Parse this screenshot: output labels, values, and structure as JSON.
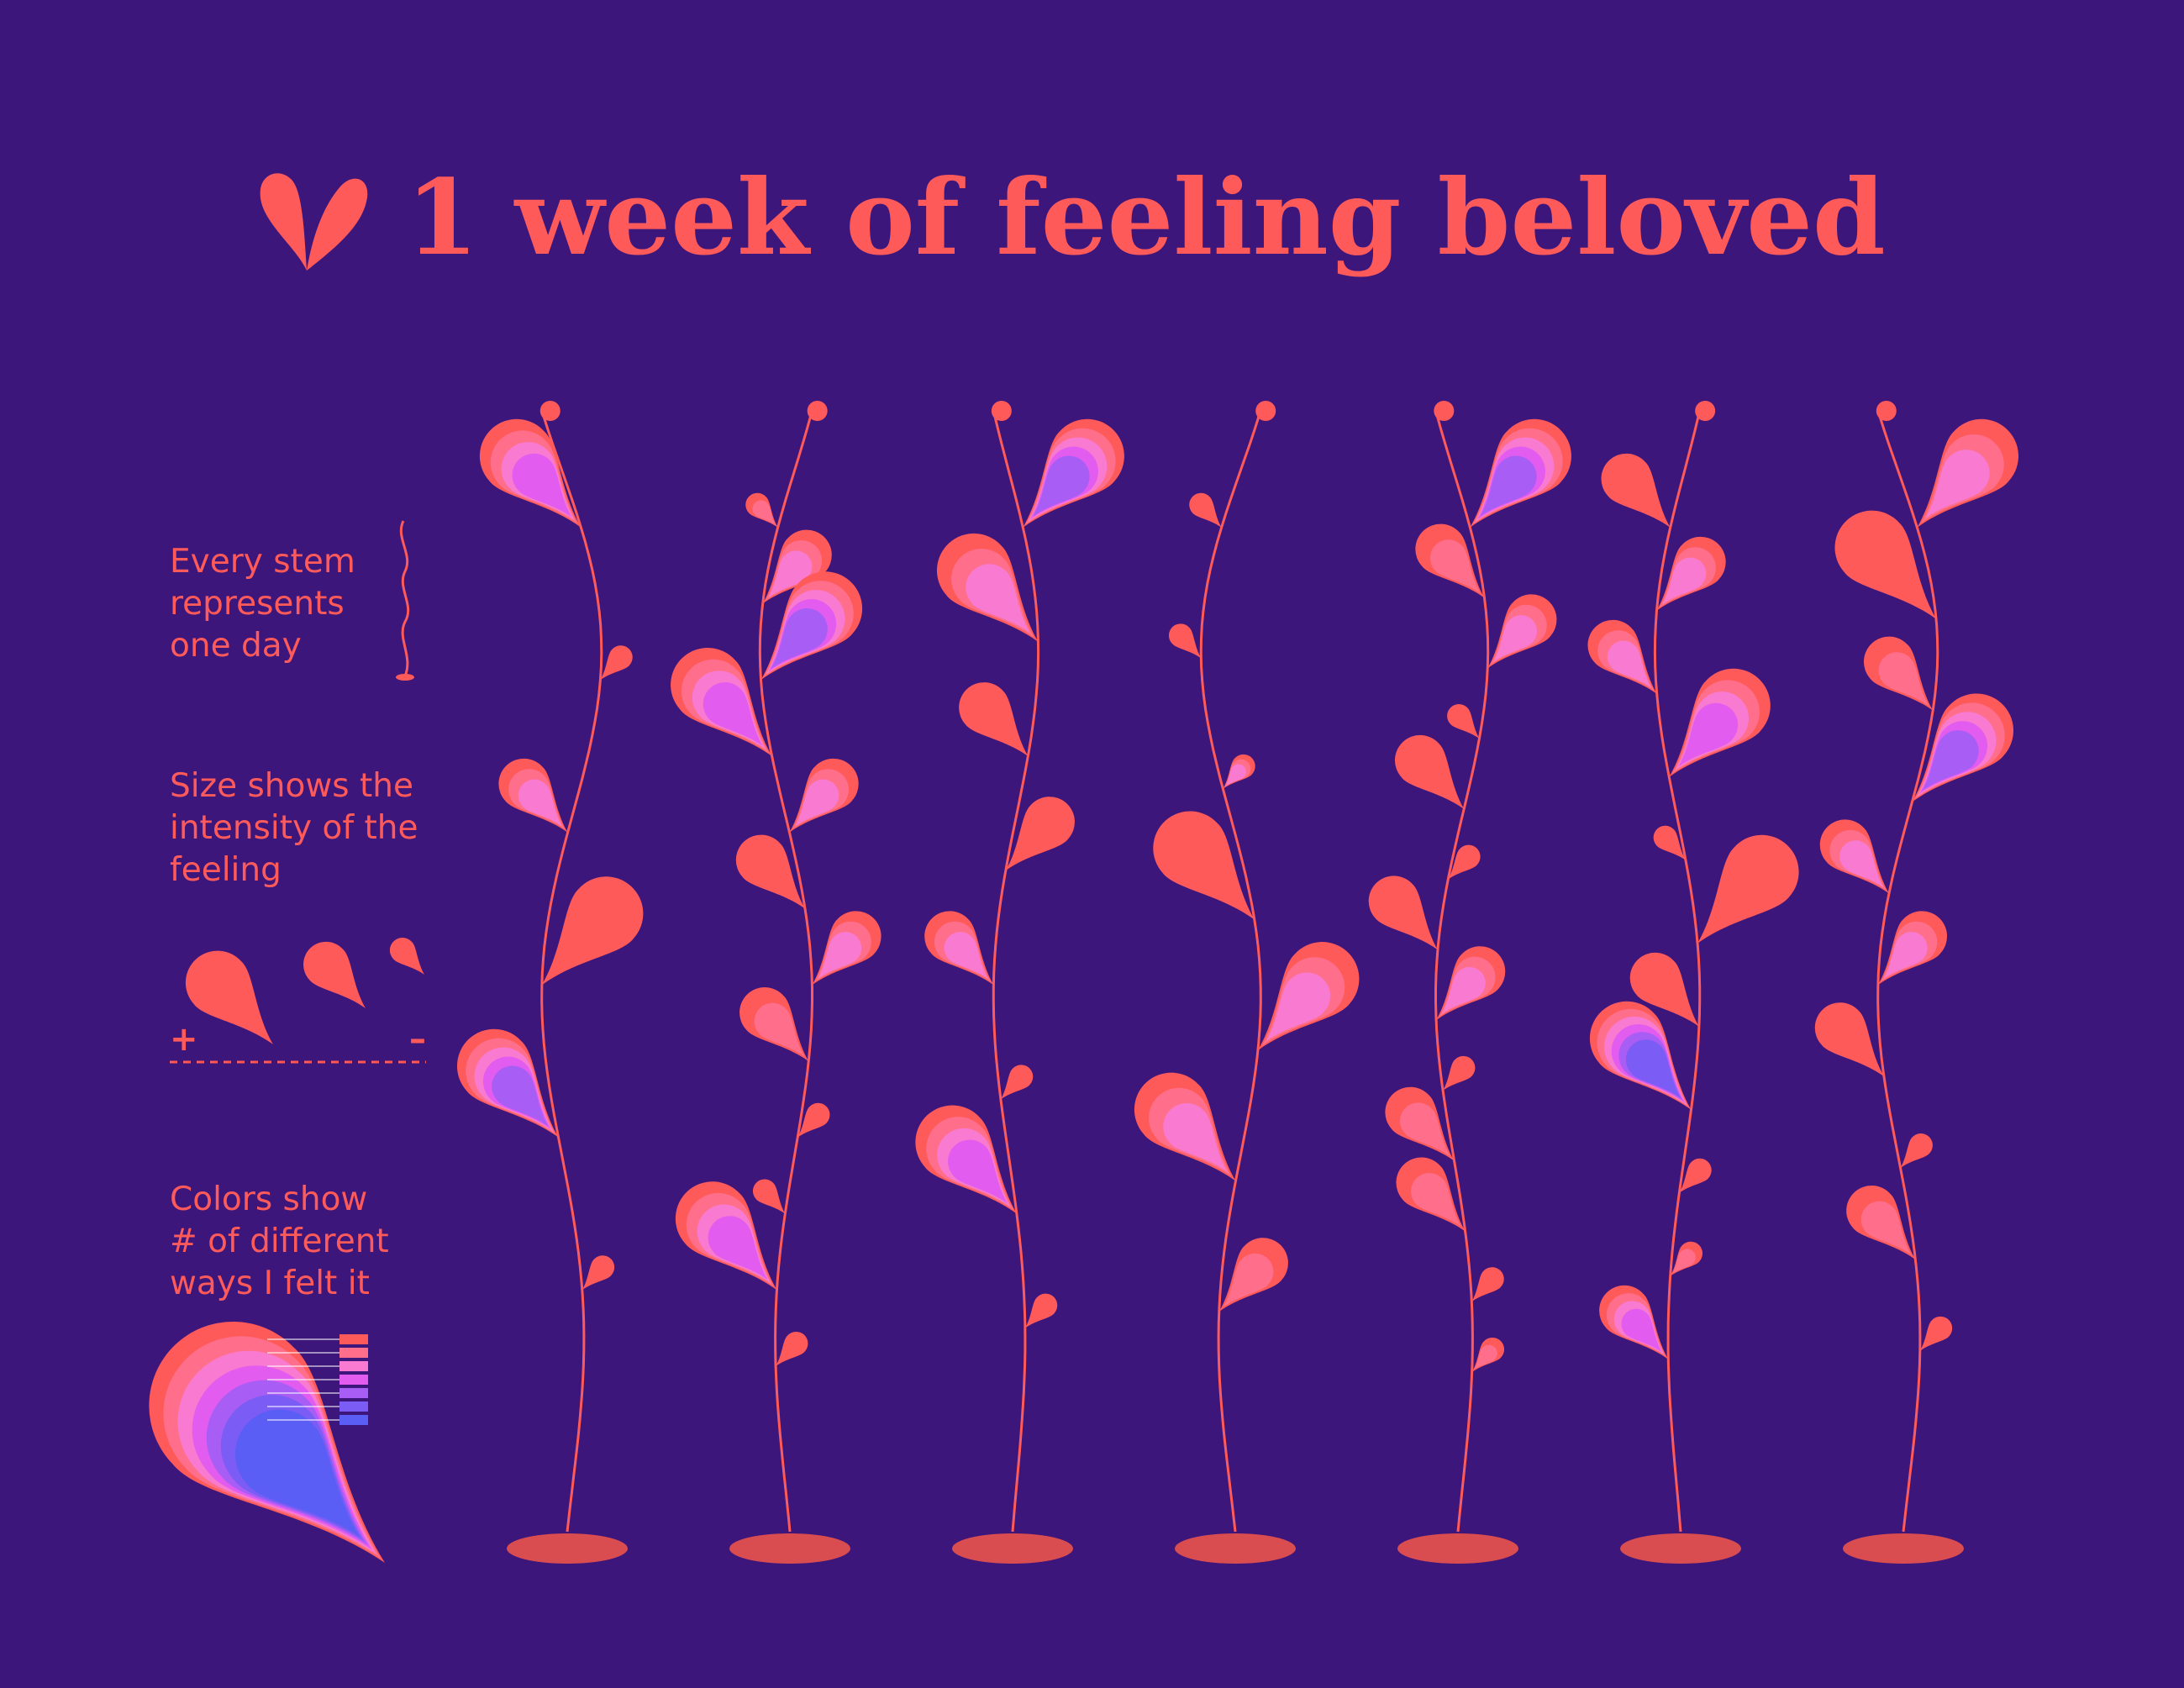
{
  "title": "1 week of feeling  beloved",
  "colors": {
    "background": "#3c167b",
    "accent": "#ff5a5a",
    "base": "#d94c50",
    "palette": [
      "#ff5a5a",
      "#ff6f8c",
      "#f97ad1",
      "#e35cf0",
      "#a85ef5",
      "#7b5cf5",
      "#5b5ef5"
    ]
  },
  "legend": {
    "stem_line1": "Every stem",
    "stem_line2": "represents",
    "stem_line3": "one day",
    "size_line1": "Size shows the",
    "size_line2": "intensity of the",
    "size_line3": "feeling",
    "plus": "+",
    "minus": "–",
    "color_line1": "Colors show",
    "color_line2": "# of different",
    "color_line3": "ways I felt it"
  },
  "chart_data": {
    "type": "custom-flower-glyphs",
    "title": "1 week of feeling  beloved",
    "encoding": "one stem per day; leaf size = intensity (1-3); leaf color layers = number of different ways felt (1-7)",
    "days": [
      {
        "day": 1,
        "leaves": [
          {
            "side": "L",
            "size": 3,
            "colors": 4
          },
          {
            "side": "R",
            "size": 1,
            "colors": 1
          },
          {
            "side": "L",
            "size": 2,
            "colors": 3
          },
          {
            "side": "R",
            "size": 3,
            "colors": 1
          },
          {
            "side": "L",
            "size": 3,
            "colors": 5
          },
          {
            "side": "R",
            "size": 1,
            "colors": 1
          }
        ]
      },
      {
        "day": 2,
        "leaves": [
          {
            "side": "L",
            "size": 1,
            "colors": 2
          },
          {
            "side": "R",
            "size": 2,
            "colors": 3
          },
          {
            "side": "R",
            "size": 3,
            "colors": 5
          },
          {
            "side": "L",
            "size": 3,
            "colors": 4
          },
          {
            "side": "R",
            "size": 2,
            "colors": 3
          },
          {
            "side": "L",
            "size": 2,
            "colors": 1
          },
          {
            "side": "R",
            "size": 2,
            "colors": 3
          },
          {
            "side": "L",
            "size": 2,
            "colors": 2
          },
          {
            "side": "R",
            "size": 1,
            "colors": 1
          },
          {
            "side": "L",
            "size": 1,
            "colors": 1
          },
          {
            "side": "L",
            "size": 3,
            "colors": 4
          },
          {
            "side": "R",
            "size": 1,
            "colors": 1
          }
        ]
      },
      {
        "day": 3,
        "leaves": [
          {
            "side": "R",
            "size": 3,
            "colors": 5
          },
          {
            "side": "L",
            "size": 3,
            "colors": 3
          },
          {
            "side": "L",
            "size": 2,
            "colors": 1
          },
          {
            "side": "R",
            "size": 2,
            "colors": 1
          },
          {
            "side": "L",
            "size": 2,
            "colors": 3
          },
          {
            "side": "R",
            "size": 1,
            "colors": 1
          },
          {
            "side": "L",
            "size": 3,
            "colors": 4
          },
          {
            "side": "R",
            "size": 1,
            "colors": 1
          }
        ]
      },
      {
        "day": 4,
        "leaves": [
          {
            "side": "L",
            "size": 1,
            "colors": 1
          },
          {
            "side": "L",
            "size": 1,
            "colors": 1
          },
          {
            "side": "R",
            "size": 1,
            "colors": 3
          },
          {
            "side": "L",
            "size": 3,
            "colors": 1
          },
          {
            "side": "R",
            "size": 3,
            "colors": 3
          },
          {
            "side": "L",
            "size": 3,
            "colors": 3
          },
          {
            "side": "R",
            "size": 2,
            "colors": 2
          }
        ]
      },
      {
        "day": 5,
        "leaves": [
          {
            "side": "R",
            "size": 3,
            "colors": 5
          },
          {
            "side": "L",
            "size": 2,
            "colors": 2
          },
          {
            "side": "R",
            "size": 2,
            "colors": 3
          },
          {
            "side": "L",
            "size": 1,
            "colors": 1
          },
          {
            "side": "L",
            "size": 2,
            "colors": 1
          },
          {
            "side": "R",
            "size": 1,
            "colors": 1
          },
          {
            "side": "L",
            "size": 2,
            "colors": 1
          },
          {
            "side": "R",
            "size": 2,
            "colors": 3
          },
          {
            "side": "R",
            "size": 1,
            "colors": 1
          },
          {
            "side": "L",
            "size": 2,
            "colors": 2
          },
          {
            "side": "L",
            "size": 2,
            "colors": 2
          },
          {
            "side": "R",
            "size": 1,
            "colors": 1
          },
          {
            "side": "R",
            "size": 1,
            "colors": 2
          }
        ]
      },
      {
        "day": 6,
        "leaves": [
          {
            "side": "L",
            "size": 2,
            "colors": 1
          },
          {
            "side": "R",
            "size": 2,
            "colors": 3
          },
          {
            "side": "L",
            "size": 2,
            "colors": 3
          },
          {
            "side": "R",
            "size": 3,
            "colors": 4
          },
          {
            "side": "L",
            "size": 1,
            "colors": 1
          },
          {
            "side": "R",
            "size": 3,
            "colors": 1
          },
          {
            "side": "L",
            "size": 2,
            "colors": 1
          },
          {
            "side": "L",
            "size": 3,
            "colors": 6
          },
          {
            "side": "R",
            "size": 1,
            "colors": 1
          },
          {
            "side": "R",
            "size": 1,
            "colors": 2
          },
          {
            "side": "L",
            "size": 2,
            "colors": 4
          }
        ]
      },
      {
        "day": 7,
        "leaves": [
          {
            "side": "R",
            "size": 3,
            "colors": 3
          },
          {
            "side": "L",
            "size": 3,
            "colors": 1
          },
          {
            "side": "L",
            "size": 2,
            "colors": 2
          },
          {
            "side": "R",
            "size": 3,
            "colors": 5
          },
          {
            "side": "L",
            "size": 2,
            "colors": 3
          },
          {
            "side": "R",
            "size": 2,
            "colors": 3
          },
          {
            "side": "L",
            "size": 2,
            "colors": 1
          },
          {
            "side": "R",
            "size": 1,
            "colors": 1
          },
          {
            "side": "L",
            "size": 2,
            "colors": 2
          },
          {
            "side": "R",
            "size": 1,
            "colors": 1
          }
        ]
      }
    ]
  }
}
